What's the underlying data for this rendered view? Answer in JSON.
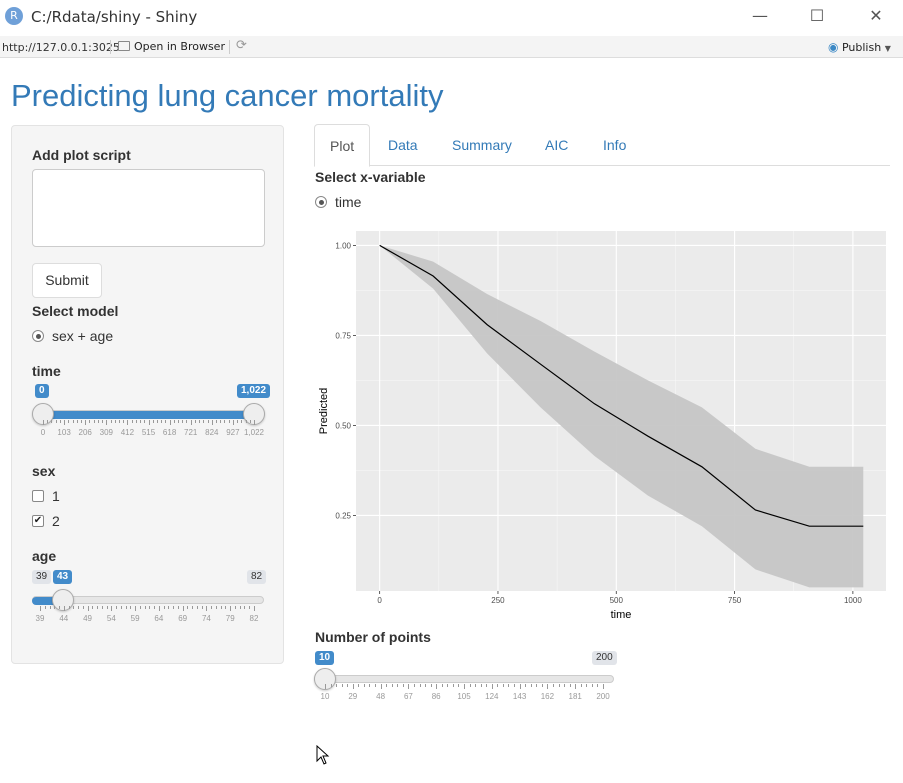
{
  "window": {
    "title": "C:/Rdata/shiny - Shiny",
    "icon": "R",
    "minimize": "—",
    "maximize": "☐",
    "close": "✕"
  },
  "toolbar": {
    "url": "http://127.0.0.1:3025",
    "open_browser": "Open in Browser",
    "publish": "Publish"
  },
  "page": {
    "title": "Predicting lung cancer mortality"
  },
  "sidebar": {
    "plot_script_label": "Add plot script",
    "submit": "Submit",
    "model_label": "Select model",
    "model_option": "sex + age",
    "time": {
      "label": "time",
      "min": "0",
      "max": "1,022",
      "from": "0",
      "to": "1,022",
      "ticks": [
        "0",
        "103",
        "206",
        "309",
        "412",
        "515",
        "618",
        "721",
        "824",
        "927",
        "1,022"
      ]
    },
    "sex": {
      "label": "sex",
      "options": [
        {
          "label": "1",
          "checked": false
        },
        {
          "label": "2",
          "checked": true
        }
      ]
    },
    "age": {
      "label": "age",
      "min": "39",
      "max": "82",
      "value": "43",
      "ticks": [
        "39",
        "44",
        "49",
        "54",
        "59",
        "64",
        "69",
        "74",
        "79",
        "82"
      ]
    }
  },
  "tabs": [
    "Plot",
    "Data",
    "Summary",
    "AIC",
    "Info"
  ],
  "main": {
    "x_var_label": "Select x-variable",
    "x_var_option": "time",
    "points": {
      "label": "Number of points",
      "min": "10",
      "max": "200",
      "value": "10",
      "ticks": [
        "10",
        "29",
        "48",
        "67",
        "86",
        "105",
        "124",
        "143",
        "162",
        "181",
        "200"
      ]
    }
  },
  "chart_data": {
    "type": "line",
    "xlabel": "time",
    "ylabel": "Predicted",
    "xlim": [
      -50,
      1070
    ],
    "ylim": [
      0.04,
      1.04
    ],
    "x_ticks": [
      0,
      250,
      500,
      750,
      1000
    ],
    "y_ticks": [
      0.25,
      0.5,
      0.75,
      1.0
    ],
    "x_tick_labels": [
      "0",
      "250",
      "500",
      "750",
      "1000"
    ],
    "y_tick_labels": [
      "0.25",
      "0.50",
      "0.75",
      "1.00"
    ],
    "series": [
      {
        "x": [
          0,
          113,
          227,
          340,
          454,
          567,
          681,
          794,
          908,
          1022
        ],
        "y": [
          1.0,
          0.915,
          0.78,
          0.67,
          0.56,
          0.47,
          0.385,
          0.265,
          0.22,
          0.22
        ],
        "lower": [
          1.0,
          0.88,
          0.7,
          0.55,
          0.415,
          0.305,
          0.22,
          0.1,
          0.05,
          0.05
        ],
        "upper": [
          1.0,
          0.955,
          0.865,
          0.79,
          0.705,
          0.625,
          0.55,
          0.435,
          0.385,
          0.385
        ]
      }
    ],
    "grid": true,
    "colors": {
      "panel": "#ebebeb",
      "ribbon": "#c6c6c6",
      "line": "#000000",
      "grid": "#ffffff"
    }
  }
}
